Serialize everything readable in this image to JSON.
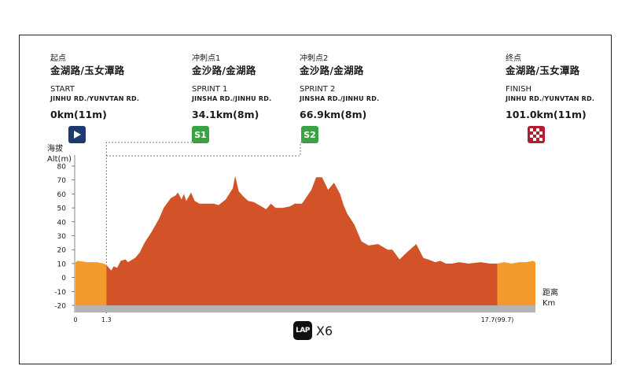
{
  "markers": {
    "start": {
      "zh_label": "起点",
      "zh_road": "金湖路/玉女潭路",
      "en_label": "START",
      "en_road": "JINHU RD./YUNVTAN RD.",
      "distance": "0km(11m)",
      "icon": "play-icon"
    },
    "sprint1": {
      "zh_label": "冲刺点1",
      "zh_road": "金沙路/金湖路",
      "en_label": "SPRINT 1",
      "en_road": "JINSHA RD./JINHU RD.",
      "distance": "34.1km(8m)",
      "badge": "S1"
    },
    "sprint2": {
      "zh_label": "冲刺点2",
      "zh_road": "金沙路/金湖路",
      "en_label": "SPRINT 2",
      "en_road": "JINSHA RD./JINHU RD.",
      "distance": "66.9km(8m)",
      "badge": "S2"
    },
    "finish": {
      "zh_label": "终点",
      "zh_road": "金湖路/玉女潭路",
      "en_label": "FINISH",
      "en_road": "JINHU RD./YUNVTAN RD.",
      "distance": "101.0km(11m)",
      "icon": "checkered-flag-icon"
    }
  },
  "yaxis_title": [
    "海拔",
    "Alt(m)"
  ],
  "xaxis_title": [
    "距离",
    "Km"
  ],
  "lap": {
    "badge": "LAP",
    "count": "X6"
  },
  "colors": {
    "circuit": "#d35328",
    "approach": "#f39a2c",
    "base": "#b4b4b4",
    "start_icon": "#1e3a6e",
    "sprint_icon": "#3aa344",
    "finish_icon": "#b01e32"
  },
  "chart_data": {
    "type": "area",
    "xlabel": "距离 Km",
    "ylabel": "海拔 Alt(m)",
    "ylim": [
      -20,
      80
    ],
    "yticks": [
      -20,
      -10,
      0,
      10,
      20,
      30,
      40,
      50,
      60,
      70,
      80
    ],
    "xticks": [
      {
        "value": 0,
        "label": "0"
      },
      {
        "value": 1.3,
        "label": "1.3"
      },
      {
        "value": 17.7,
        "label": "17.7(99.7)"
      }
    ],
    "grid": false,
    "series": [
      {
        "name": "approach-start",
        "x": [
          0,
          0.1,
          0.5,
          0.9,
          1.2,
          1.3
        ],
        "y": [
          11,
          12,
          11,
          11,
          10,
          9
        ]
      },
      {
        "name": "circuit",
        "x": [
          1.3,
          1.5,
          1.6,
          1.75,
          1.9,
          2.1,
          2.2,
          2.5,
          2.7,
          2.9,
          3.2,
          3.5,
          3.7,
          4.0,
          4.2,
          4.3,
          4.45,
          4.55,
          4.65,
          4.75,
          4.85,
          5.0,
          5.2,
          5.5,
          5.8,
          6.0,
          6.3,
          6.6,
          6.7,
          6.85,
          7.05,
          7.25,
          7.5,
          7.8,
          8.0,
          8.2,
          8.4,
          8.7,
          9.0,
          9.2,
          9.5,
          9.9,
          10.1,
          10.35,
          10.6,
          10.85,
          11.1,
          11.25,
          11.4,
          11.7,
          12.0,
          12.3,
          12.7,
          13.1,
          13.3,
          13.6,
          13.9,
          14.3,
          14.6,
          14.8,
          15.1,
          15.3,
          15.55,
          15.8,
          16.1,
          16.5,
          17.0,
          17.4,
          17.7
        ],
        "y": [
          9,
          5,
          8,
          7,
          12,
          13,
          11,
          14,
          18,
          25,
          33,
          42,
          50,
          57,
          59,
          61,
          56,
          60,
          55,
          58,
          61,
          55,
          53,
          53,
          53,
          52,
          56,
          64,
          73,
          62,
          58,
          55,
          54,
          51,
          49,
          53,
          50,
          50,
          51,
          53,
          53,
          63,
          72,
          72,
          63,
          68,
          60,
          52,
          46,
          38,
          26,
          23,
          24,
          20,
          20,
          13,
          18,
          24,
          14,
          13,
          11,
          12,
          10,
          10,
          11,
          10,
          11,
          10,
          10
        ]
      },
      {
        "name": "approach-finish",
        "x": [
          17.7,
          18.0,
          18.3,
          18.6,
          18.9,
          19.2,
          19.3
        ],
        "y": [
          10,
          11,
          10,
          11,
          11,
          12,
          11
        ]
      }
    ]
  }
}
